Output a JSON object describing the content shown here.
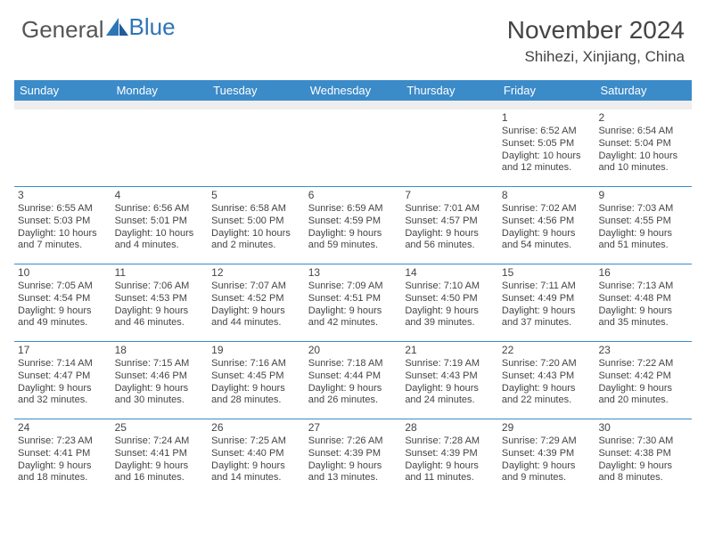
{
  "brand": {
    "part1": "General",
    "part2": "Blue"
  },
  "title": "November 2024",
  "location": "Shihezi, Xinjiang, China",
  "colors": {
    "header_bg": "#3b8bc9",
    "header_text": "#ffffff",
    "divider": "#3b8bc9",
    "body_text": "#444444",
    "spacer_bg": "#eeeeee",
    "logo_blue": "#2e75b6"
  },
  "day_names": [
    "Sunday",
    "Monday",
    "Tuesday",
    "Wednesday",
    "Thursday",
    "Friday",
    "Saturday"
  ],
  "weeks": [
    [
      null,
      null,
      null,
      null,
      null,
      {
        "n": "1",
        "sr": "6:52 AM",
        "ss": "5:05 PM",
        "d1": "Daylight: 10 hours",
        "d2": "and 12 minutes."
      },
      {
        "n": "2",
        "sr": "6:54 AM",
        "ss": "5:04 PM",
        "d1": "Daylight: 10 hours",
        "d2": "and 10 minutes."
      }
    ],
    [
      {
        "n": "3",
        "sr": "6:55 AM",
        "ss": "5:03 PM",
        "d1": "Daylight: 10 hours",
        "d2": "and 7 minutes."
      },
      {
        "n": "4",
        "sr": "6:56 AM",
        "ss": "5:01 PM",
        "d1": "Daylight: 10 hours",
        "d2": "and 4 minutes."
      },
      {
        "n": "5",
        "sr": "6:58 AM",
        "ss": "5:00 PM",
        "d1": "Daylight: 10 hours",
        "d2": "and 2 minutes."
      },
      {
        "n": "6",
        "sr": "6:59 AM",
        "ss": "4:59 PM",
        "d1": "Daylight: 9 hours",
        "d2": "and 59 minutes."
      },
      {
        "n": "7",
        "sr": "7:01 AM",
        "ss": "4:57 PM",
        "d1": "Daylight: 9 hours",
        "d2": "and 56 minutes."
      },
      {
        "n": "8",
        "sr": "7:02 AM",
        "ss": "4:56 PM",
        "d1": "Daylight: 9 hours",
        "d2": "and 54 minutes."
      },
      {
        "n": "9",
        "sr": "7:03 AM",
        "ss": "4:55 PM",
        "d1": "Daylight: 9 hours",
        "d2": "and 51 minutes."
      }
    ],
    [
      {
        "n": "10",
        "sr": "7:05 AM",
        "ss": "4:54 PM",
        "d1": "Daylight: 9 hours",
        "d2": "and 49 minutes."
      },
      {
        "n": "11",
        "sr": "7:06 AM",
        "ss": "4:53 PM",
        "d1": "Daylight: 9 hours",
        "d2": "and 46 minutes."
      },
      {
        "n": "12",
        "sr": "7:07 AM",
        "ss": "4:52 PM",
        "d1": "Daylight: 9 hours",
        "d2": "and 44 minutes."
      },
      {
        "n": "13",
        "sr": "7:09 AM",
        "ss": "4:51 PM",
        "d1": "Daylight: 9 hours",
        "d2": "and 42 minutes."
      },
      {
        "n": "14",
        "sr": "7:10 AM",
        "ss": "4:50 PM",
        "d1": "Daylight: 9 hours",
        "d2": "and 39 minutes."
      },
      {
        "n": "15",
        "sr": "7:11 AM",
        "ss": "4:49 PM",
        "d1": "Daylight: 9 hours",
        "d2": "and 37 minutes."
      },
      {
        "n": "16",
        "sr": "7:13 AM",
        "ss": "4:48 PM",
        "d1": "Daylight: 9 hours",
        "d2": "and 35 minutes."
      }
    ],
    [
      {
        "n": "17",
        "sr": "7:14 AM",
        "ss": "4:47 PM",
        "d1": "Daylight: 9 hours",
        "d2": "and 32 minutes."
      },
      {
        "n": "18",
        "sr": "7:15 AM",
        "ss": "4:46 PM",
        "d1": "Daylight: 9 hours",
        "d2": "and 30 minutes."
      },
      {
        "n": "19",
        "sr": "7:16 AM",
        "ss": "4:45 PM",
        "d1": "Daylight: 9 hours",
        "d2": "and 28 minutes."
      },
      {
        "n": "20",
        "sr": "7:18 AM",
        "ss": "4:44 PM",
        "d1": "Daylight: 9 hours",
        "d2": "and 26 minutes."
      },
      {
        "n": "21",
        "sr": "7:19 AM",
        "ss": "4:43 PM",
        "d1": "Daylight: 9 hours",
        "d2": "and 24 minutes."
      },
      {
        "n": "22",
        "sr": "7:20 AM",
        "ss": "4:43 PM",
        "d1": "Daylight: 9 hours",
        "d2": "and 22 minutes."
      },
      {
        "n": "23",
        "sr": "7:22 AM",
        "ss": "4:42 PM",
        "d1": "Daylight: 9 hours",
        "d2": "and 20 minutes."
      }
    ],
    [
      {
        "n": "24",
        "sr": "7:23 AM",
        "ss": "4:41 PM",
        "d1": "Daylight: 9 hours",
        "d2": "and 18 minutes."
      },
      {
        "n": "25",
        "sr": "7:24 AM",
        "ss": "4:41 PM",
        "d1": "Daylight: 9 hours",
        "d2": "and 16 minutes."
      },
      {
        "n": "26",
        "sr": "7:25 AM",
        "ss": "4:40 PM",
        "d1": "Daylight: 9 hours",
        "d2": "and 14 minutes."
      },
      {
        "n": "27",
        "sr": "7:26 AM",
        "ss": "4:39 PM",
        "d1": "Daylight: 9 hours",
        "d2": "and 13 minutes."
      },
      {
        "n": "28",
        "sr": "7:28 AM",
        "ss": "4:39 PM",
        "d1": "Daylight: 9 hours",
        "d2": "and 11 minutes."
      },
      {
        "n": "29",
        "sr": "7:29 AM",
        "ss": "4:39 PM",
        "d1": "Daylight: 9 hours",
        "d2": "and 9 minutes."
      },
      {
        "n": "30",
        "sr": "7:30 AM",
        "ss": "4:38 PM",
        "d1": "Daylight: 9 hours",
        "d2": "and 8 minutes."
      }
    ]
  ]
}
